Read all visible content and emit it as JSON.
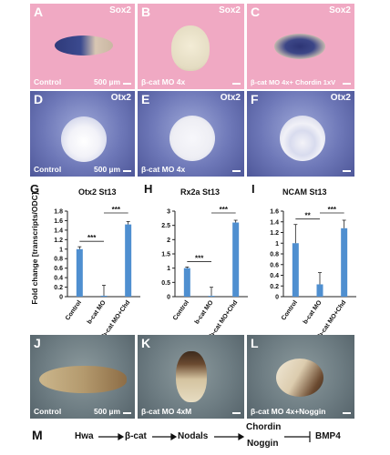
{
  "row1": {
    "panels": [
      {
        "label": "A",
        "marker": "Sox2",
        "condition": "Control",
        "scalebar": "500 µm"
      },
      {
        "label": "B",
        "marker": "Sox2",
        "condition": "β-cat MO 4x",
        "scalebar": ""
      },
      {
        "label": "C",
        "marker": "Sox2",
        "condition": "β-cat MO 4x+ Chordin 1xV",
        "scalebar": ""
      }
    ]
  },
  "row2": {
    "panels": [
      {
        "label": "D",
        "marker": "Otx2",
        "condition": "Control",
        "scalebar": "500 µm"
      },
      {
        "label": "E",
        "marker": "Otx2",
        "condition": "β-cat MO 4x",
        "scalebar": ""
      },
      {
        "label": "F",
        "marker": "Otx2",
        "condition": "",
        "scalebar": ""
      }
    ]
  },
  "row3": {
    "panels": [
      {
        "label": "J",
        "condition": "Control",
        "scalebar": "500 µm"
      },
      {
        "label": "K",
        "condition": "β-cat MO 4xM",
        "scalebar": ""
      },
      {
        "label": "L",
        "condition": "β-cat MO 4x+Noggin",
        "scalebar": ""
      }
    ]
  },
  "y_axis_label": "Fold change [transcripts/ODC]",
  "colors": {
    "bar": "#4f8fd0",
    "pink": "#f0a9c3"
  },
  "chart_data": [
    {
      "panel": "G",
      "type": "bar",
      "title": "Otx2 St13",
      "categories": [
        "Control",
        "b-cat MO",
        "b-cat MO+Chd"
      ],
      "values": [
        1.0,
        0.02,
        1.52
      ],
      "errors": [
        0.05,
        0.22,
        0.06
      ],
      "ylim": [
        0,
        1.8
      ],
      "ticks": [
        "0",
        "0.2",
        "0.4",
        "0.6",
        "0.8",
        "1",
        "1.2",
        "1.4",
        "1.6",
        "1.8"
      ],
      "significance": [
        {
          "from": 0,
          "to": 1,
          "label": "***"
        },
        {
          "from": 1,
          "to": 2,
          "label": "***"
        }
      ]
    },
    {
      "panel": "H",
      "type": "bar",
      "title": "Rx2a St13",
      "categories": [
        "Control",
        "b-cat MO",
        "b-cat MO+Chd"
      ],
      "values": [
        1.0,
        0.03,
        2.6
      ],
      "errors": [
        0.04,
        0.3,
        0.08
      ],
      "ylim": [
        0,
        3
      ],
      "ticks": [
        "0",
        "0.5",
        "1",
        "1.5",
        "2",
        "2.5",
        "3"
      ],
      "significance": [
        {
          "from": 0,
          "to": 1,
          "label": "***"
        },
        {
          "from": 1,
          "to": 2,
          "label": "***"
        }
      ]
    },
    {
      "panel": "I",
      "type": "bar",
      "title": "NCAM St13",
      "categories": [
        "Control",
        "b-cat MO",
        "b-cat MO+Chd"
      ],
      "values": [
        1.0,
        0.23,
        1.28
      ],
      "errors": [
        0.35,
        0.22,
        0.15
      ],
      "ylim": [
        0,
        1.6
      ],
      "ticks": [
        "0",
        "0.2",
        "0.4",
        "0.6",
        "0.8",
        "1",
        "1.2",
        "1.4",
        "1.6"
      ],
      "significance": [
        {
          "from": 0,
          "to": 1,
          "label": "**"
        },
        {
          "from": 1,
          "to": 2,
          "label": "***"
        }
      ]
    }
  ],
  "pathway": {
    "label": "M",
    "nodes": [
      "Hwa",
      "β-cat",
      "Nodals",
      "Chordin",
      "Noggin",
      "BMP4"
    ]
  }
}
